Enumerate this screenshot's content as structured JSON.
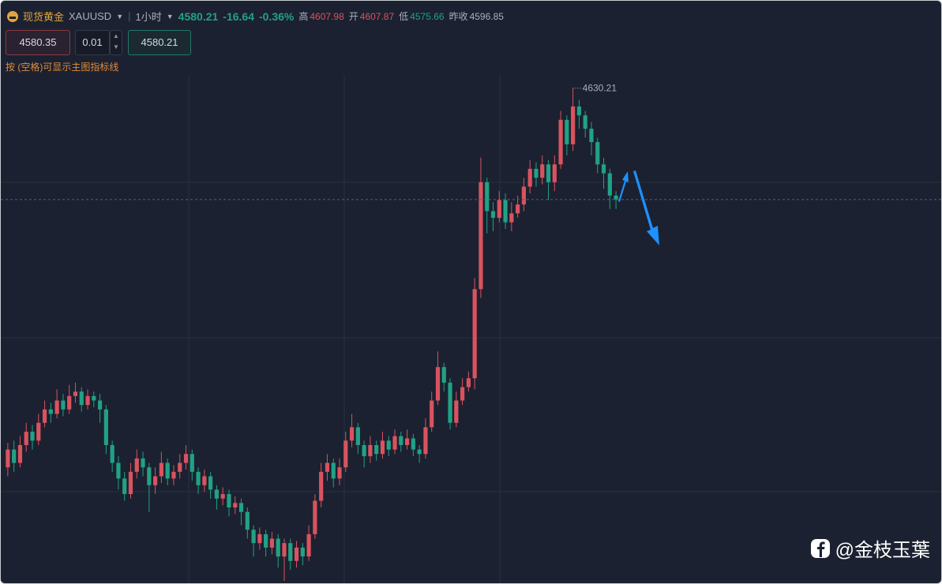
{
  "header": {
    "name": "现货黄金",
    "symbol": "XAUUSD",
    "interval": "1小时",
    "price": "4580.21",
    "change": "-16.64",
    "change_pct": "-0.36%",
    "high_label": "高",
    "high": "4607.98",
    "open_label": "开",
    "open": "4607.87",
    "low_label": "低",
    "low": "4575.66",
    "prev_close_label": "昨收",
    "prev_close": "4596.85"
  },
  "order": {
    "sell": "4580.35",
    "lots": "0.01",
    "buy": "4580.21"
  },
  "hint": "按 (空格)可显示主图指标线",
  "watermark": "@金枝玉葉",
  "chart_data": {
    "type": "candlestick",
    "ylim": [
      4408,
      4634
    ],
    "up_color": "#d9535f",
    "down_color": "#22a184",
    "high_marker": 4630.21,
    "last_price": 4580.21,
    "open": [
      4460,
      4468,
      4462,
      4470,
      4476,
      4472,
      4480,
      4486,
      4484,
      4490,
      4486,
      4492,
      4494,
      4488,
      4492,
      4490,
      4486,
      4470,
      4462,
      4455,
      4448,
      4458,
      4464,
      4460,
      4452,
      4456,
      4462,
      4455,
      4458,
      4462,
      4466,
      4458,
      4452,
      4456,
      4450,
      4446,
      4448,
      4442,
      4444,
      4440,
      4432,
      4426,
      4430,
      4424,
      4428,
      4420,
      4426,
      4418,
      4424,
      4420,
      4430,
      4445,
      4458,
      4462,
      4455,
      4460,
      4472,
      4478,
      4470,
      4465,
      4470,
      4466,
      4472,
      4468,
      4474,
      4470,
      4473,
      4468,
      4466,
      4478,
      4490,
      4505,
      4498,
      4480,
      4490,
      4496,
      4500,
      4540,
      4588,
      4575,
      4572,
      4580,
      4570,
      4574,
      4578,
      4586,
      4594,
      4590,
      4596,
      4588,
      4596,
      4616,
      4605,
      4622,
      4618,
      4612,
      4606,
      4596,
      4592,
      4582
    ],
    "high": [
      4471,
      4472,
      4474,
      4480,
      4479,
      4484,
      4490,
      4489,
      4495,
      4493,
      4497,
      4498,
      4496,
      4495,
      4494,
      4493,
      4488,
      4472,
      4465,
      4458,
      4462,
      4468,
      4467,
      4462,
      4460,
      4467,
      4464,
      4461,
      4466,
      4470,
      4468,
      4460,
      4459,
      4458,
      4452,
      4451,
      4450,
      4447,
      4446,
      4442,
      4434,
      4433,
      4432,
      4431,
      4430,
      4428,
      4428,
      4427,
      4426,
      4434,
      4448,
      4462,
      4466,
      4464,
      4464,
      4476,
      4484,
      4480,
      4472,
      4474,
      4472,
      4476,
      4474,
      4477,
      4476,
      4477,
      4475,
      4470,
      4482,
      4494,
      4512,
      4507,
      4500,
      4494,
      4500,
      4503,
      4545,
      4599,
      4590,
      4579,
      4584,
      4583,
      4579,
      4582,
      4590,
      4598,
      4597,
      4600,
      4598,
      4600,
      4620,
      4618,
      4630.21,
      4625,
      4620,
      4615,
      4608,
      4599,
      4594,
      4584
    ],
    "low": [
      4456,
      4458,
      4460,
      4467,
      4468,
      4470,
      4478,
      4480,
      4482,
      4483,
      4484,
      4489,
      4485,
      4486,
      4487,
      4480,
      4466,
      4458,
      4450,
      4445,
      4446,
      4455,
      4456,
      4440,
      4448,
      4453,
      4452,
      4452,
      4455,
      4459,
      4454,
      4448,
      4449,
      4446,
      4441,
      4443,
      4438,
      4439,
      4434,
      4428,
      4420,
      4423,
      4420,
      4421,
      4415,
      4409,
      4414,
      4415,
      4416,
      4418,
      4428,
      4442,
      4454,
      4451,
      4452,
      4458,
      4469,
      4466,
      4460,
      4462,
      4463,
      4464,
      4465,
      4466,
      4467,
      4468,
      4465,
      4462,
      4464,
      4476,
      4488,
      4494,
      4477,
      4478,
      4488,
      4494,
      4495,
      4536,
      4565,
      4566,
      4570,
      4567,
      4566,
      4572,
      4575,
      4583,
      4586,
      4587,
      4580,
      4584,
      4594,
      4600,
      4602,
      4612,
      4608,
      4600,
      4592,
      4585,
      4576,
      4576
    ],
    "close": [
      4468,
      4462,
      4470,
      4476,
      4472,
      4480,
      4486,
      4484,
      4490,
      4486,
      4492,
      4494,
      4488,
      4492,
      4490,
      4486,
      4470,
      4462,
      4455,
      4448,
      4458,
      4464,
      4460,
      4452,
      4456,
      4462,
      4455,
      4458,
      4462,
      4466,
      4458,
      4452,
      4456,
      4450,
      4446,
      4448,
      4442,
      4444,
      4440,
      4432,
      4426,
      4430,
      4424,
      4428,
      4420,
      4426,
      4418,
      4424,
      4420,
      4430,
      4445,
      4458,
      4462,
      4455,
      4460,
      4472,
      4478,
      4470,
      4465,
      4470,
      4466,
      4472,
      4468,
      4474,
      4470,
      4473,
      4468,
      4466,
      4478,
      4490,
      4505,
      4498,
      4480,
      4490,
      4496,
      4500,
      4540,
      4588,
      4575,
      4572,
      4580,
      4570,
      4574,
      4578,
      4586,
      4594,
      4590,
      4596,
      4588,
      4596,
      4616,
      4605,
      4622,
      4618,
      4612,
      4606,
      4596,
      4592,
      4582,
      4580.21
    ]
  }
}
